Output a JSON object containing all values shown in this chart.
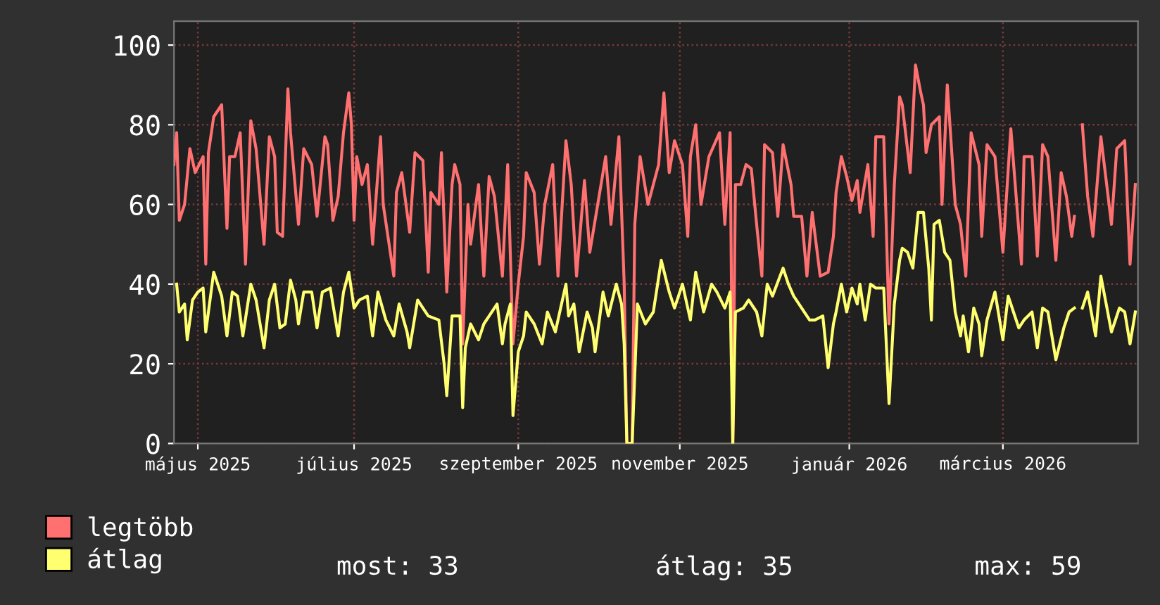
{
  "chart_data": {
    "type": "line",
    "xlim": [
      "2025-04-29",
      "2026-04-28"
    ],
    "xticks": [
      {
        "value": "2025-05-08",
        "label": "május 2025"
      },
      {
        "value": "2025-07-06",
        "label": "július 2025"
      },
      {
        "value": "2025-09-06",
        "label": "szeptember 2025"
      },
      {
        "value": "2025-11-06",
        "label": "november 2025"
      },
      {
        "value": "2026-01-09",
        "label": "január 2026"
      },
      {
        "value": "2026-03-08",
        "label": "március 2026"
      }
    ],
    "ylim": [
      0,
      106
    ],
    "yticks": [
      0,
      20,
      40,
      60,
      80,
      100
    ],
    "grid": true,
    "legend": "bottom left",
    "series": [
      {
        "name": "legtöbb",
        "color": "#ff7070",
        "x": [
          "2025-04-29",
          "2025-04-30",
          "2025-05-01",
          "2025-05-03",
          "2025-05-05",
          "2025-05-07",
          "2025-05-10",
          "2025-05-11",
          "2025-05-12",
          "2025-05-14",
          "2025-05-17",
          "2025-05-19",
          "2025-05-20",
          "2025-05-22",
          "2025-05-24",
          "2025-05-26",
          "2025-05-28",
          "2025-05-30",
          "2025-06-02",
          "2025-06-04",
          "2025-06-06",
          "2025-06-07",
          "2025-06-09",
          "2025-06-11",
          "2025-06-12",
          "2025-06-15",
          "2025-06-17",
          "2025-06-20",
          "2025-06-22",
          "2025-06-25",
          "2025-06-26",
          "2025-06-28",
          "2025-06-30",
          "2025-07-02",
          "2025-07-04",
          "2025-07-05",
          "2025-07-06",
          "2025-07-07",
          "2025-07-09",
          "2025-07-11",
          "2025-07-13",
          "2025-07-16",
          "2025-07-17",
          "2025-07-21",
          "2025-07-22",
          "2025-07-24",
          "2025-07-27",
          "2025-07-29",
          "2025-08-01",
          "2025-08-03",
          "2025-08-04",
          "2025-08-07",
          "2025-08-08",
          "2025-08-10",
          "2025-08-12",
          "2025-08-13",
          "2025-08-15",
          "2025-08-16",
          "2025-08-18",
          "2025-08-19",
          "2025-08-22",
          "2025-08-24",
          "2025-08-26",
          "2025-08-28",
          "2025-08-31",
          "2025-09-02",
          "2025-09-04",
          "2025-09-06",
          "2025-09-08",
          "2025-09-09",
          "2025-09-12",
          "2025-09-14",
          "2025-09-16",
          "2025-09-19",
          "2025-09-21",
          "2025-09-24",
          "2025-09-26",
          "2025-09-28",
          "2025-10-01",
          "2025-10-03",
          "2025-10-06",
          "2025-10-09",
          "2025-10-11",
          "2025-10-14",
          "2025-10-16",
          "2025-10-17",
          "2025-10-19",
          "2025-10-20",
          "2025-10-22",
          "2025-10-25",
          "2025-10-27",
          "2025-10-29",
          "2025-10-31",
          "2025-11-02",
          "2025-11-04",
          "2025-11-07",
          "2025-11-09",
          "2025-11-10",
          "2025-11-12",
          "2025-11-14",
          "2025-11-17",
          "2025-11-19",
          "2025-11-21",
          "2025-11-23",
          "2025-11-25",
          "2025-11-26",
          "2025-11-27",
          "2025-11-29",
          "2025-12-01",
          "2025-12-03",
          "2025-12-05",
          "2025-12-07",
          "2025-12-08",
          "2025-12-11",
          "2025-12-13",
          "2025-12-15",
          "2025-12-18",
          "2025-12-19",
          "2025-12-22",
          "2025-12-24",
          "2025-12-26",
          "2025-12-29",
          "2026-01-01",
          "2026-01-03",
          "2026-01-04",
          "2026-01-06",
          "2026-01-08",
          "2026-01-10",
          "2026-01-12",
          "2026-01-13",
          "2026-01-16",
          "2026-01-18",
          "2026-01-19",
          "2026-01-22",
          "2026-01-24",
          "2026-01-26",
          "2026-01-28",
          "2026-01-29",
          "2026-02-01",
          "2026-02-03",
          "2026-02-05",
          "2026-02-06",
          "2026-02-07",
          "2026-02-09",
          "2026-02-12",
          "2026-02-13",
          "2026-02-15",
          "2026-02-18",
          "2026-02-20",
          "2026-02-22",
          "2026-02-24",
          "2026-02-27",
          "2026-02-28",
          "2026-03-02",
          "2026-03-05",
          "2026-03-08",
          "2026-03-11",
          "2026-03-13",
          "2026-03-15",
          "2026-03-16",
          "2026-03-19",
          "2026-03-21",
          "2026-03-23",
          "2026-03-25",
          "2026-03-28",
          "2026-03-30",
          "2026-04-01",
          "2026-04-03",
          "2026-04-04",
          "2026-04-05",
          "2026-04-07",
          "2026-04-09",
          "2026-04-11",
          "2026-04-14",
          "2026-04-16",
          "2026-04-18",
          "2026-04-20",
          "2026-04-23",
          "2026-04-25",
          "2026-04-27"
        ],
        "values": [
          70,
          78,
          56,
          60,
          74,
          68,
          72,
          45,
          73,
          82,
          85,
          54,
          72,
          72,
          78,
          45,
          81,
          74,
          50,
          77,
          72,
          53,
          52,
          89,
          78,
          55,
          74,
          70,
          57,
          77,
          75,
          56,
          62,
          78,
          88,
          80,
          56,
          72,
          65,
          70,
          50,
          77,
          60,
          42,
          63,
          68,
          53,
          73,
          71,
          43,
          63,
          60,
          73,
          38,
          65,
          70,
          65,
          25,
          60,
          50,
          65,
          42,
          67,
          62,
          42,
          70,
          25,
          40,
          52,
          68,
          63,
          45,
          60,
          70,
          42,
          76,
          65,
          42,
          66,
          48,
          60,
          72,
          55,
          77,
          40,
          0,
          0,
          55,
          72,
          60,
          65,
          70,
          88,
          68,
          76,
          70,
          52,
          72,
          80,
          60,
          72,
          75,
          78,
          55,
          78,
          0,
          65,
          65,
          70,
          69,
          55,
          42,
          75,
          73,
          57,
          75,
          65,
          57,
          57,
          42,
          58,
          42,
          43,
          52,
          63,
          72,
          67,
          61,
          66,
          58,
          70,
          52,
          77,
          77,
          30,
          65,
          87,
          85,
          68,
          95,
          88,
          85,
          73,
          80,
          82,
          60,
          90,
          60,
          55,
          42,
          78,
          70,
          52,
          75,
          72,
          48,
          79,
          62,
          45,
          72,
          72,
          47,
          75,
          72,
          46,
          68,
          62,
          52,
          57,
          null,
          80,
          62,
          52,
          77,
          66,
          55,
          74,
          76,
          45,
          65
        ]
      },
      {
        "name": "átlag",
        "color": "#ffff70",
        "x": [
          "2025-04-30",
          "2025-05-01",
          "2025-05-03",
          "2025-05-04",
          "2025-05-06",
          "2025-05-08",
          "2025-05-10",
          "2025-05-11",
          "2025-05-14",
          "2025-05-15",
          "2025-05-17",
          "2025-05-19",
          "2025-05-21",
          "2025-05-23",
          "2025-05-25",
          "2025-05-28",
          "2025-05-30",
          "2025-06-02",
          "2025-06-04",
          "2025-06-06",
          "2025-06-08",
          "2025-06-10",
          "2025-06-12",
          "2025-06-14",
          "2025-06-15",
          "2025-06-17",
          "2025-06-20",
          "2025-06-22",
          "2025-06-24",
          "2025-06-27",
          "2025-06-30",
          "2025-07-02",
          "2025-07-04",
          "2025-07-06",
          "2025-07-08",
          "2025-07-11",
          "2025-07-13",
          "2025-07-15",
          "2025-07-18",
          "2025-07-21",
          "2025-07-23",
          "2025-07-26",
          "2025-07-27",
          "2025-07-30",
          "2025-08-01",
          "2025-08-03",
          "2025-08-07",
          "2025-08-09",
          "2025-08-10",
          "2025-08-12",
          "2025-08-15",
          "2025-08-16",
          "2025-08-17",
          "2025-08-19",
          "2025-08-22",
          "2025-08-24",
          "2025-08-26",
          "2025-08-29",
          "2025-08-31",
          "2025-09-01",
          "2025-09-03",
          "2025-09-04",
          "2025-09-06",
          "2025-09-08",
          "2025-09-09",
          "2025-09-12",
          "2025-09-15",
          "2025-09-17",
          "2025-09-20",
          "2025-09-24",
          "2025-09-25",
          "2025-09-27",
          "2025-09-29",
          "2025-10-02",
          "2025-10-04",
          "2025-10-05",
          "2025-10-08",
          "2025-10-10",
          "2025-10-13",
          "2025-10-15",
          "2025-10-16",
          "2025-10-17",
          "2025-10-19",
          "2025-10-21",
          "2025-10-24",
          "2025-10-27",
          "2025-10-30",
          "2025-11-02",
          "2025-11-04",
          "2025-11-07",
          "2025-11-10",
          "2025-11-12",
          "2025-11-15",
          "2025-11-18",
          "2025-11-20",
          "2025-11-23",
          "2025-11-25",
          "2025-11-26",
          "2025-11-27",
          "2025-11-30",
          "2025-12-02",
          "2025-12-05",
          "2025-12-07",
          "2025-12-09",
          "2025-12-11",
          "2025-12-15",
          "2025-12-17",
          "2025-12-19",
          "2025-12-22",
          "2025-12-25",
          "2025-12-27",
          "2025-12-30",
          "2026-01-01",
          "2026-01-03",
          "2026-01-04",
          "2026-01-06",
          "2026-01-08",
          "2026-01-10",
          "2026-01-12",
          "2026-01-13",
          "2026-01-15",
          "2026-01-17",
          "2026-01-19",
          "2026-01-22",
          "2026-01-24",
          "2026-01-26",
          "2026-01-28",
          "2026-01-29",
          "2026-01-31",
          "2026-02-02",
          "2026-02-04",
          "2026-02-06",
          "2026-02-08",
          "2026-02-09",
          "2026-02-10",
          "2026-02-12",
          "2026-02-14",
          "2026-02-16",
          "2026-02-18",
          "2026-02-20",
          "2026-02-21",
          "2026-02-23",
          "2026-02-25",
          "2026-02-27",
          "2026-02-28",
          "2026-03-02",
          "2026-03-05",
          "2026-03-08",
          "2026-03-10",
          "2026-03-12",
          "2026-03-14",
          "2026-03-16",
          "2026-03-19",
          "2026-03-21",
          "2026-03-23",
          "2026-03-25",
          "2026-03-28",
          "2026-03-31",
          "2026-04-02",
          "2026-04-04",
          "2026-04-05",
          "2026-04-07",
          "2026-04-09",
          "2026-04-12",
          "2026-04-14",
          "2026-04-16",
          "2026-04-18",
          "2026-04-21",
          "2026-04-23",
          "2026-04-25",
          "2026-04-27"
        ],
        "values": [
          40,
          33,
          35,
          26,
          36,
          38,
          39,
          28,
          43,
          41,
          37,
          27,
          38,
          37,
          27,
          40,
          36,
          24,
          36,
          40,
          29,
          30,
          41,
          36,
          30,
          38,
          38,
          29,
          38,
          39,
          27,
          38,
          43,
          34,
          36,
          37,
          27,
          38,
          31,
          27,
          35,
          28,
          24,
          36,
          34,
          32,
          31,
          20,
          12,
          32,
          32,
          9,
          24,
          30,
          26,
          30,
          32,
          35,
          25,
          30,
          35,
          7,
          23,
          27,
          33,
          30,
          25,
          33,
          28,
          40,
          32,
          35,
          23,
          33,
          29,
          23,
          38,
          32,
          40,
          35,
          25,
          0,
          0,
          35,
          30,
          33,
          46,
          38,
          34,
          40,
          31,
          43,
          33,
          40,
          38,
          34,
          38,
          0,
          33,
          34,
          36,
          33,
          27,
          40,
          37,
          44,
          40,
          37,
          34,
          31,
          31,
          32,
          19,
          30,
          33,
          40,
          33,
          39,
          35,
          40,
          31,
          40,
          39,
          39,
          10,
          35,
          46,
          49,
          48,
          44,
          58,
          58,
          44,
          31,
          55,
          56,
          48,
          46,
          33,
          27,
          32,
          23,
          34,
          30,
          22,
          31,
          38,
          26,
          37,
          33,
          29,
          31,
          33,
          24,
          34,
          33,
          21,
          29,
          33,
          34,
          null,
          34,
          38,
          27,
          42,
          35,
          28,
          34,
          33,
          25,
          33
        ]
      }
    ],
    "annotations": [
      "most: 33",
      "átlag: 35",
      "max: 59"
    ]
  }
}
